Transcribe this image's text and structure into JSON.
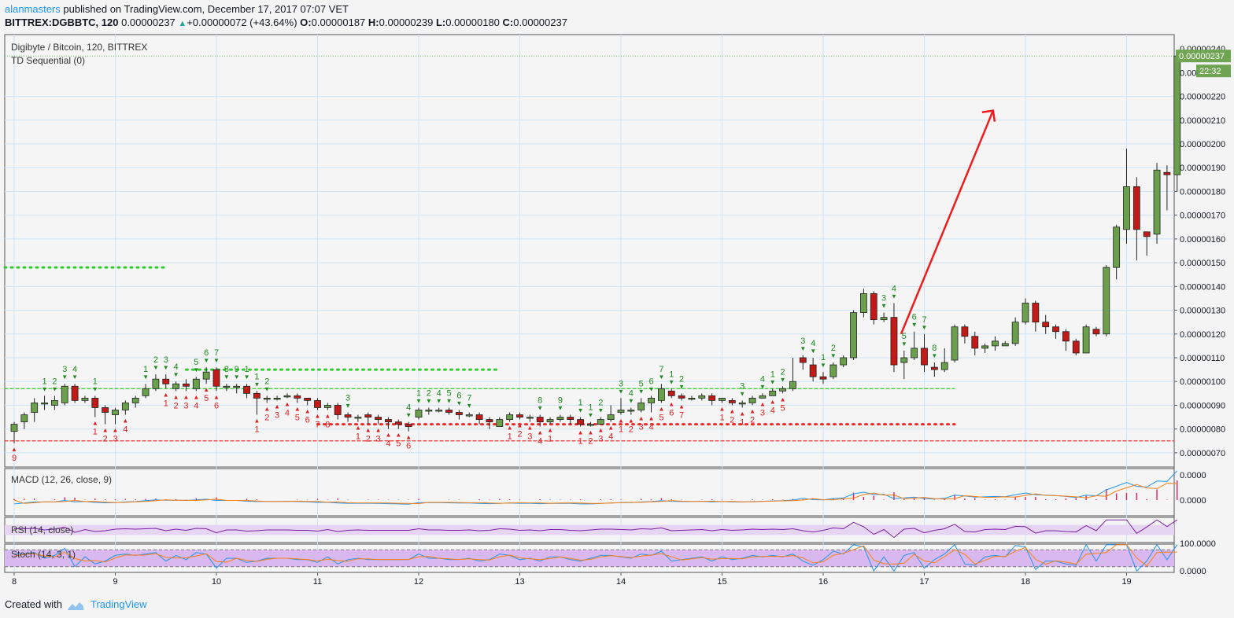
{
  "header": {
    "author": "alanmasters",
    "published": " published on TradingView.com, December 17, 2017 07:07 VET",
    "symbol": "BITTREX:DGBBTC, 120",
    "price": "0.00000237",
    "change": "+0.00000072 (+43.64%)",
    "open_label": "O:",
    "open": "0.00000187",
    "high_label": "H:",
    "high": "0.00000239",
    "low_label": "L:",
    "low": "0.00000180",
    "close_label": "C:",
    "close": "0.00000237"
  },
  "main_pane": {
    "legend_title": "Digibyte / Bitcoin, 120, BITTREX",
    "legend_indicator": "TD Sequential (0)"
  },
  "footer": {
    "created_with": "Created with",
    "brand": "TradingView"
  },
  "colors": {
    "up": "#6a9f4b",
    "down": "#c21a17",
    "green_label": "#1e8a1e",
    "red_label": "#e02020",
    "grid": "#cde3f7",
    "macd": "#2196f3",
    "signal": "#ff7f0e",
    "rsi": "#7b1fa2"
  },
  "chart_data": [
    {
      "type": "candlestick",
      "title": "Digibyte / Bitcoin, 120, BITTREX",
      "x_tick_labels": [
        "8",
        "9",
        "10",
        "11",
        "12",
        "13",
        "14",
        "15",
        "16",
        "17",
        "18",
        "19"
      ],
      "y_tick_labels": [
        "0.00000070",
        "0.00000080",
        "0.00000090",
        "0.00000100",
        "0.00000110",
        "0.00000120",
        "0.00000130",
        "0.00000140",
        "0.00000150",
        "0.00000160",
        "0.00000170",
        "0.00000180",
        "0.00000190",
        "0.00000200",
        "0.00000210",
        "0.00000220"
      ],
      "ylim": [
        6.4e-07,
        2.46e-06
      ],
      "last_price_label": "0.00000237",
      "countdown_label": "22:32",
      "partial_axis_labels": [
        "0.00000240",
        "0.000"
      ],
      "candles": [
        [
          8.0,
          79,
          82,
          74,
          83
        ],
        [
          8.1,
          83,
          86,
          80,
          87
        ],
        [
          8.2,
          87,
          91,
          83,
          93
        ],
        [
          8.3,
          91,
          91,
          88,
          94
        ],
        [
          8.4,
          90,
          92,
          88,
          94
        ],
        [
          8.5,
          91,
          98,
          90,
          99
        ],
        [
          8.6,
          98,
          92,
          91,
          99
        ],
        [
          8.7,
          92,
          93,
          91,
          94
        ],
        [
          8.8,
          93,
          89,
          85,
          94
        ],
        [
          8.9,
          89,
          87,
          82,
          90
        ],
        [
          9.0,
          86,
          88,
          82,
          89
        ],
        [
          9.1,
          88,
          91,
          86,
          92
        ],
        [
          9.2,
          91,
          93,
          89,
          94
        ],
        [
          9.3,
          94,
          97,
          93,
          99
        ],
        [
          9.4,
          97,
          101,
          96,
          103
        ],
        [
          9.5,
          101,
          99,
          97,
          103
        ],
        [
          9.6,
          97,
          99,
          96,
          100
        ],
        [
          9.7,
          99,
          98,
          96,
          101
        ],
        [
          9.8,
          97,
          101,
          96,
          102
        ],
        [
          9.9,
          101,
          104,
          99,
          106
        ],
        [
          10.0,
          105,
          98,
          96,
          106
        ],
        [
          10.1,
          98,
          98,
          96,
          99
        ],
        [
          10.2,
          98,
          98,
          95,
          99
        ],
        [
          10.3,
          98,
          95,
          93,
          99
        ],
        [
          10.4,
          95,
          93,
          86,
          96
        ],
        [
          10.5,
          93,
          93,
          91,
          94
        ],
        [
          10.6,
          93,
          93,
          92,
          94
        ],
        [
          10.7,
          94,
          94,
          93,
          95
        ],
        [
          10.8,
          94,
          93,
          91,
          95
        ],
        [
          10.9,
          93,
          92,
          90,
          93
        ],
        [
          11.0,
          92,
          89,
          88,
          93
        ],
        [
          11.1,
          89,
          90,
          88,
          91
        ],
        [
          11.2,
          90,
          86,
          84,
          91
        ],
        [
          11.3,
          86,
          85,
          83,
          87
        ],
        [
          11.4,
          85,
          85,
          83,
          86
        ],
        [
          11.5,
          86,
          85,
          82,
          87
        ],
        [
          11.6,
          85,
          84,
          82,
          86
        ],
        [
          11.7,
          84,
          83,
          80,
          85
        ],
        [
          11.8,
          83,
          82,
          80,
          84
        ],
        [
          11.9,
          82,
          81,
          79,
          83
        ],
        [
          12.0,
          85,
          88,
          84,
          89
        ],
        [
          12.1,
          88,
          88,
          86,
          89
        ],
        [
          12.2,
          88,
          88,
          87,
          89
        ],
        [
          12.3,
          88,
          87,
          86,
          89
        ],
        [
          12.4,
          87,
          86,
          84,
          88
        ],
        [
          12.5,
          86,
          86,
          85,
          87
        ],
        [
          12.6,
          86,
          84,
          82,
          87
        ],
        [
          12.7,
          84,
          83,
          80,
          85
        ],
        [
          12.8,
          81,
          84,
          81,
          85
        ],
        [
          12.9,
          84,
          86,
          83,
          87
        ],
        [
          13.0,
          86,
          85,
          84,
          87
        ],
        [
          13.1,
          85,
          85,
          83,
          86
        ],
        [
          13.2,
          85,
          83,
          81,
          86
        ],
        [
          13.3,
          83,
          84,
          82,
          85
        ],
        [
          13.4,
          84,
          85,
          83,
          86
        ],
        [
          13.5,
          85,
          84,
          82,
          86
        ],
        [
          13.6,
          84,
          82,
          81,
          85
        ],
        [
          13.7,
          82,
          82,
          81,
          83
        ],
        [
          13.8,
          82,
          84,
          82,
          85
        ],
        [
          13.9,
          84,
          86,
          83,
          90
        ],
        [
          14.0,
          87,
          88,
          86,
          93
        ],
        [
          14.1,
          88,
          88,
          86,
          89
        ],
        [
          14.2,
          88,
          91,
          87,
          93
        ],
        [
          14.3,
          91,
          93,
          87,
          94
        ],
        [
          14.4,
          92,
          97,
          91,
          99
        ],
        [
          14.5,
          96,
          94,
          93,
          97
        ],
        [
          14.6,
          94,
          93,
          92,
          95
        ],
        [
          14.7,
          93,
          93,
          92,
          94
        ],
        [
          14.8,
          93,
          94,
          92,
          95
        ],
        [
          14.9,
          94,
          92,
          90,
          95
        ],
        [
          15.0,
          92,
          93,
          91,
          93
        ],
        [
          15.1,
          92,
          91,
          90,
          93
        ],
        [
          15.2,
          91,
          91,
          89,
          92
        ],
        [
          15.3,
          91,
          93,
          90,
          94
        ],
        [
          15.4,
          93,
          94,
          93,
          95
        ],
        [
          15.5,
          94,
          96,
          94,
          97
        ],
        [
          15.6,
          96,
          97,
          95,
          98
        ],
        [
          15.7,
          97,
          100,
          96,
          110
        ],
        [
          15.8,
          110,
          108,
          105,
          111
        ],
        [
          15.9,
          107,
          102,
          100,
          110
        ],
        [
          16.0,
          102,
          101,
          99,
          104
        ],
        [
          16.1,
          102,
          107,
          101,
          108
        ],
        [
          16.2,
          107,
          110,
          106,
          111
        ],
        [
          16.3,
          110,
          129,
          109,
          130
        ],
        [
          16.4,
          129,
          137,
          127,
          139
        ],
        [
          16.5,
          137,
          126,
          124,
          138
        ],
        [
          16.6,
          126,
          127,
          125,
          129
        ],
        [
          16.7,
          127,
          107,
          104,
          133
        ],
        [
          16.8,
          108,
          110,
          101,
          113
        ],
        [
          16.9,
          110,
          114,
          109,
          121
        ],
        [
          17.0,
          114,
          107,
          104,
          120
        ],
        [
          17.1,
          106,
          105,
          102,
          108
        ],
        [
          17.2,
          105,
          108,
          104,
          114
        ],
        [
          17.3,
          109,
          123,
          108,
          124
        ],
        [
          17.4,
          123,
          119,
          116,
          124
        ],
        [
          17.5,
          119,
          114,
          111,
          121
        ],
        [
          17.6,
          114,
          115,
          112,
          116
        ],
        [
          17.7,
          115,
          117,
          113,
          119
        ],
        [
          17.8,
          115,
          116,
          115,
          117
        ],
        [
          17.9,
          116,
          125,
          115,
          127
        ],
        [
          18.0,
          125,
          133,
          124,
          135
        ],
        [
          18.1,
          133,
          125,
          121,
          134
        ],
        [
          18.2,
          125,
          123,
          120,
          128
        ],
        [
          18.3,
          123,
          121,
          118,
          124
        ],
        [
          18.4,
          121,
          117,
          113,
          122
        ],
        [
          18.5,
          117,
          112,
          111,
          118
        ],
        [
          18.6,
          112,
          123,
          112,
          124
        ],
        [
          18.7,
          122,
          120,
          119,
          123
        ],
        [
          18.8,
          120,
          148,
          119,
          149
        ],
        [
          18.9,
          148,
          165,
          143,
          166
        ],
        [
          19.0,
          164,
          182,
          158,
          198
        ],
        [
          19.1,
          182,
          164,
          151,
          186
        ],
        [
          19.2,
          163,
          161,
          153,
          163
        ],
        [
          19.3,
          162,
          189,
          158,
          192
        ],
        [
          19.4,
          188,
          187,
          172,
          191
        ],
        [
          19.5,
          187,
          237,
          180,
          239
        ]
      ],
      "series": [
        {
          "name": "TD Sequential (0)",
          "green_counts": [
            "1",
            "2",
            "3",
            "4",
            "1",
            "1",
            "2",
            "3",
            "4",
            "5",
            "6",
            "7",
            "8",
            "9",
            "1",
            "1",
            "2",
            "3",
            "4",
            "1",
            "2",
            "4",
            "5",
            "6",
            "7",
            "8",
            "9",
            "1",
            "1",
            "2",
            "3",
            "4",
            "5",
            "6",
            "7",
            "1",
            "2",
            "3",
            "4",
            "1",
            "2",
            "3",
            "4",
            "1",
            "2",
            "3",
            "4",
            "5",
            "6",
            "7",
            "8"
          ],
          "red_counts": [
            "9",
            "1",
            "2",
            "3",
            "4",
            "1",
            "2",
            "3",
            "4",
            "5",
            "6",
            "1",
            "2",
            "3",
            "4",
            "5",
            "6",
            "7",
            "8",
            "1",
            "2",
            "3",
            "4",
            "5",
            "6",
            "1",
            "2",
            "3",
            "4",
            "1",
            "1",
            "2",
            "3",
            "4",
            "1",
            "2",
            "3",
            "4",
            "5",
            "6",
            "7",
            "1",
            "2",
            "1",
            "2",
            "3",
            "4",
            "5"
          ]
        }
      ],
      "support_levels": [
        {
          "value": 1.48e-06,
          "color": "green",
          "style": "dotted"
        },
        {
          "value": 1.05e-06,
          "color": "green",
          "style": "dotted"
        },
        {
          "value": 9.7e-07,
          "color": "green",
          "style": "dashed"
        },
        {
          "value": 8.2e-07,
          "color": "red",
          "style": "dotted"
        },
        {
          "value": 7.5e-07,
          "color": "red",
          "style": "dashed"
        }
      ],
      "annotation": "red arrow pointing up-right"
    },
    {
      "type": "line",
      "title": "MACD (12, 26, close, 9)",
      "y_tick_labels": [
        "0.0000",
        "0.0000"
      ],
      "series": [
        {
          "name": "MACD"
        },
        {
          "name": "Signal"
        },
        {
          "name": "Histogram"
        }
      ]
    },
    {
      "type": "line",
      "title": "RSI (14, close)",
      "ylim": [
        0,
        100
      ],
      "band": [
        30,
        70
      ]
    },
    {
      "type": "line",
      "title": "Stoch (14, 3, 1)",
      "y_tick_labels": [
        "100.0000",
        "0.0000"
      ],
      "ylim": [
        0,
        100
      ],
      "band": [
        20,
        80
      ]
    }
  ]
}
